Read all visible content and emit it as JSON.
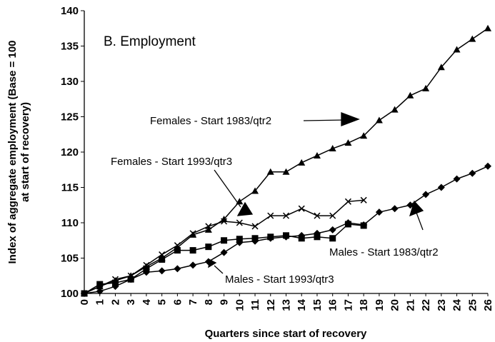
{
  "chart_data": {
    "type": "line",
    "title": "B. Employment",
    "xlabel": "Quarters since start of recovery",
    "ylabel": [
      "Index of aggregate employment (Base = 100",
      "at start of recovery)"
    ],
    "x": [
      0,
      1,
      2,
      3,
      4,
      5,
      6,
      7,
      8,
      9,
      10,
      11,
      12,
      13,
      14,
      15,
      16,
      17,
      18,
      19,
      20,
      21,
      22,
      23,
      24,
      25,
      26
    ],
    "xlim": [
      0,
      26
    ],
    "xticks": [
      0,
      1,
      2,
      3,
      4,
      5,
      6,
      7,
      8,
      9,
      10,
      11,
      12,
      13,
      14,
      15,
      16,
      17,
      18,
      19,
      20,
      21,
      22,
      23,
      24,
      25,
      26
    ],
    "ylim": [
      100,
      140
    ],
    "yticks": [
      100,
      105,
      110,
      115,
      120,
      125,
      130,
      135,
      140
    ],
    "grid": false,
    "series": [
      {
        "name": "Females - Start 1983/qtr2",
        "color": "#000000",
        "marker": "triangle",
        "values": [
          100,
          101,
          101.8,
          102.5,
          103.8,
          105,
          106.5,
          108.3,
          109,
          110.5,
          113,
          114.5,
          117.2,
          117.2,
          118.5,
          119.5,
          120.5,
          121.3,
          122.3,
          124.5,
          126,
          128,
          129,
          132,
          134.5,
          136,
          137.5
        ]
      },
      {
        "name": "Females - Start 1993/qtr3",
        "color": "#000000",
        "marker": "x",
        "values": [
          100,
          101,
          102,
          102.5,
          104,
          105.5,
          106.8,
          108.5,
          109.5,
          110.2,
          110,
          109.5,
          111,
          111,
          112,
          111,
          111,
          113,
          113.2,
          null,
          null,
          null,
          null,
          null,
          null,
          null,
          null
        ]
      },
      {
        "name": "Males - Start 1983/qtr2",
        "color": "#000000",
        "marker": "diamond",
        "values": [
          100,
          100.3,
          101,
          102,
          103,
          103.2,
          103.5,
          104,
          104.5,
          105.8,
          107.2,
          107.4,
          107.8,
          108,
          108.2,
          108.5,
          109,
          110,
          109.7,
          111.5,
          112,
          112.5,
          114,
          115,
          116.2,
          117,
          118
        ]
      },
      {
        "name": "Males - Start 1993/qtr3",
        "color": "#000000",
        "marker": "square",
        "values": [
          100,
          101.3,
          101.5,
          102,
          103.5,
          104.8,
          106.1,
          106.1,
          106.6,
          107.5,
          107.7,
          107.8,
          108,
          108.2,
          107.8,
          108,
          107.8,
          109.8,
          109.6,
          null,
          null,
          null,
          null,
          null,
          null,
          null,
          null
        ]
      }
    ],
    "annotations": [
      "Females - Start 1983/qtr2",
      "Females - Start 1993/qtr3",
      "Males - Start 1983/qtr2",
      "Males - Start 1993/qtr3"
    ]
  }
}
